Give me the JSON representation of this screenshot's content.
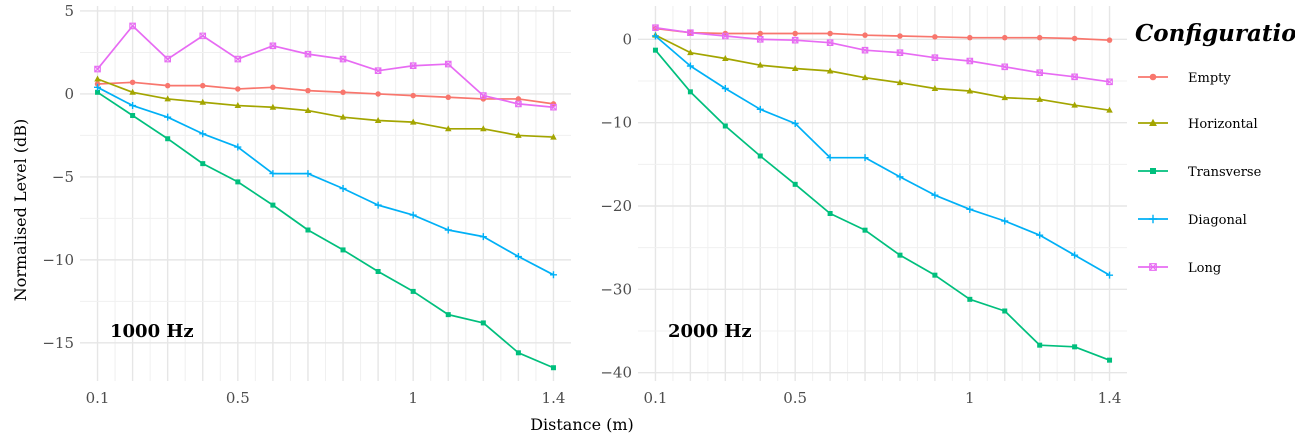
{
  "chart_data": [
    {
      "type": "line",
      "panel_label": "1000 Hz",
      "xlabel": "Distance (m)",
      "ylabel": "Normalised Level (dB)",
      "x": [
        0.1,
        0.2,
        0.3,
        0.4,
        0.5,
        0.6,
        0.7,
        0.8,
        0.9,
        1.0,
        1.1,
        1.2,
        1.3,
        1.4
      ],
      "x_ticks": [
        0.1,
        0.5,
        1,
        1.4
      ],
      "x_tick_labels": [
        "0.1",
        "0.5",
        "1",
        "1.4"
      ],
      "y_ticks": [
        5,
        0,
        -5,
        -10,
        -15
      ],
      "y_tick_labels": [
        "5",
        "0",
        "−5",
        "−10",
        "−15"
      ],
      "xlim": [
        0.05,
        1.45
      ],
      "ylim": [
        -17.3,
        5.3
      ],
      "grid": true,
      "series": [
        {
          "name": "Empty",
          "values": [
            0.6,
            0.7,
            0.5,
            0.5,
            0.3,
            0.4,
            0.2,
            0.1,
            0.0,
            -0.1,
            -0.2,
            -0.3,
            -0.3,
            -0.6
          ]
        },
        {
          "name": "Horizontal",
          "values": [
            0.9,
            0.1,
            -0.3,
            -0.5,
            -0.7,
            -0.8,
            -1.0,
            -1.4,
            -1.6,
            -1.7,
            -2.1,
            -2.1,
            -2.5,
            -2.6
          ]
        },
        {
          "name": "Transverse",
          "values": [
            0.1,
            -1.3,
            -2.7,
            -4.2,
            -5.3,
            -6.7,
            -8.2,
            -9.4,
            -10.7,
            -11.9,
            -13.3,
            -13.8,
            -15.6,
            -16.5
          ]
        },
        {
          "name": "Diagonal",
          "values": [
            0.4,
            -0.7,
            -1.4,
            -2.4,
            -3.2,
            -4.8,
            -4.8,
            -5.7,
            -6.7,
            -7.3,
            -8.2,
            -8.6,
            -9.8,
            -10.9
          ]
        },
        {
          "name": "Long",
          "values": [
            1.5,
            4.1,
            2.1,
            3.5,
            2.1,
            2.9,
            2.4,
            2.1,
            1.4,
            1.7,
            1.8,
            -0.1,
            -0.6,
            -0.8
          ]
        }
      ]
    },
    {
      "type": "line",
      "panel_label": "2000 Hz",
      "xlabel": "Distance (m)",
      "ylabel": "",
      "x": [
        0.1,
        0.2,
        0.3,
        0.4,
        0.5,
        0.6,
        0.7,
        0.8,
        0.9,
        1.0,
        1.1,
        1.2,
        1.3,
        1.4
      ],
      "x_ticks": [
        0.1,
        0.5,
        1,
        1.4
      ],
      "x_tick_labels": [
        "0.1",
        "0.5",
        "1",
        "1.4"
      ],
      "y_ticks": [
        0,
        -10,
        -20,
        -30,
        -40
      ],
      "y_tick_labels": [
        "0",
        "−10",
        "−20",
        "−30",
        "−40"
      ],
      "xlim": [
        0.05,
        1.45
      ],
      "ylim": [
        -41,
        4
      ],
      "grid": true,
      "series": [
        {
          "name": "Empty",
          "values": [
            1.3,
            0.8,
            0.7,
            0.7,
            0.7,
            0.7,
            0.5,
            0.4,
            0.3,
            0.2,
            0.2,
            0.2,
            0.1,
            -0.1
          ]
        },
        {
          "name": "Horizontal",
          "values": [
            0.5,
            -1.6,
            -2.3,
            -3.1,
            -3.5,
            -3.8,
            -4.6,
            -5.2,
            -5.9,
            -6.2,
            -7.0,
            -7.2,
            -7.9,
            -8.5
          ]
        },
        {
          "name": "Transverse",
          "values": [
            -1.3,
            -6.3,
            -10.4,
            -14.0,
            -17.4,
            -20.9,
            -22.9,
            -25.9,
            -28.3,
            -31.2,
            -32.6,
            -36.7,
            -36.9,
            -38.5
          ]
        },
        {
          "name": "Diagonal",
          "values": [
            0.4,
            -3.2,
            -5.9,
            -8.4,
            -10.1,
            -14.2,
            -14.2,
            -16.5,
            -18.7,
            -20.4,
            -21.8,
            -23.5,
            -25.9,
            -28.3
          ]
        },
        {
          "name": "Long",
          "values": [
            1.4,
            0.8,
            0.4,
            0.0,
            -0.1,
            -0.4,
            -1.3,
            -1.6,
            -2.2,
            -2.6,
            -3.3,
            -4.0,
            -4.5,
            -5.1
          ]
        }
      ]
    }
  ],
  "legend": {
    "title": "Configuration",
    "placement": "right",
    "items": [
      {
        "label": "Empty",
        "color": "#F8766D",
        "shape": "circle"
      },
      {
        "label": "Horizontal",
        "color": "#A3A500",
        "shape": "triangle"
      },
      {
        "label": "Transverse",
        "color": "#00BF7D",
        "shape": "square"
      },
      {
        "label": "Diagonal",
        "color": "#00B0F6",
        "shape": "plus"
      },
      {
        "label": "Long",
        "color": "#E76BF3",
        "shape": "square-cross"
      }
    ]
  }
}
